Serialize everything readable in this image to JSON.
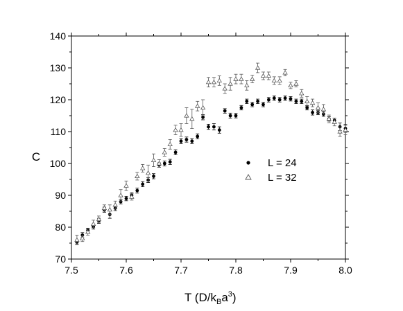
{
  "chart_data": {
    "type": "scatter",
    "xlabel": {
      "main": "T (D/k",
      "sub": "B",
      "mid": "a",
      "sup": "3",
      "end": ")"
    },
    "ylabel": "C",
    "xlim": [
      7.5,
      8.0
    ],
    "ylim": [
      70,
      140
    ],
    "x_ticks": [
      "7.5",
      "7.6",
      "7.7",
      "7.8",
      "7.9",
      "8.0"
    ],
    "x_tick_values": [
      7.5,
      7.6,
      7.7,
      7.8,
      7.9,
      8.0
    ],
    "y_ticks": [
      "70",
      "80",
      "90",
      "100",
      "110",
      "120",
      "130",
      "140"
    ],
    "y_tick_values": [
      70,
      80,
      90,
      100,
      110,
      120,
      130,
      140
    ],
    "legend": {
      "placement": "center-right",
      "items": [
        "L = 24",
        "L = 32"
      ]
    },
    "series": [
      {
        "name": "L = 24",
        "marker": "filled-circle",
        "color": "#000000",
        "x": [
          7.51,
          7.52,
          7.53,
          7.54,
          7.55,
          7.56,
          7.57,
          7.58,
          7.59,
          7.6,
          7.61,
          7.62,
          7.63,
          7.64,
          7.65,
          7.66,
          7.67,
          7.68,
          7.69,
          7.7,
          7.71,
          7.72,
          7.73,
          7.74,
          7.75,
          7.76,
          7.77,
          7.78,
          7.79,
          7.8,
          7.81,
          7.82,
          7.83,
          7.84,
          7.85,
          7.86,
          7.87,
          7.88,
          7.89,
          7.9,
          7.91,
          7.92,
          7.93,
          7.94,
          7.95,
          7.96,
          7.97,
          7.98,
          7.99,
          8.0
        ],
        "y": [
          75.3,
          77.5,
          79.0,
          80.2,
          82.0,
          85.5,
          84.0,
          86.0,
          88.0,
          89.0,
          90.0,
          91.5,
          93.5,
          94.8,
          96.0,
          99.5,
          100.0,
          100.5,
          103.5,
          107.0,
          107.5,
          107.0,
          108.5,
          114.5,
          111.5,
          111.5,
          110.5,
          116.5,
          115.0,
          115.0,
          117.5,
          119.5,
          118.5,
          119.5,
          118.5,
          120.0,
          120.5,
          120.0,
          120.5,
          120.3,
          119.5,
          119.5,
          117.5,
          116.0,
          116.0,
          115.5,
          114.0,
          113.5,
          111.5,
          111.0
        ],
        "err": [
          0.7,
          0.8,
          0.7,
          0.8,
          0.8,
          0.8,
          1.2,
          0.8,
          0.7,
          0.7,
          0.8,
          0.8,
          0.8,
          0.8,
          0.8,
          0.7,
          0.8,
          0.8,
          0.8,
          0.8,
          0.8,
          0.8,
          0.8,
          0.8,
          0.8,
          1.0,
          1.0,
          0.7,
          0.8,
          0.7,
          0.7,
          0.7,
          0.7,
          0.7,
          0.7,
          0.7,
          0.7,
          0.7,
          0.7,
          0.7,
          0.7,
          0.7,
          0.7,
          0.8,
          0.7,
          0.7,
          0.7,
          0.7,
          1.2,
          1.2
        ]
      },
      {
        "name": "L = 32",
        "marker": "open-triangle",
        "color": "#555555",
        "x": [
          7.51,
          7.52,
          7.53,
          7.54,
          7.55,
          7.56,
          7.57,
          7.58,
          7.59,
          7.6,
          7.61,
          7.62,
          7.63,
          7.64,
          7.65,
          7.66,
          7.67,
          7.68,
          7.69,
          7.7,
          7.71,
          7.72,
          7.73,
          7.74,
          7.75,
          7.76,
          7.77,
          7.78,
          7.79,
          7.8,
          7.81,
          7.82,
          7.83,
          7.84,
          7.85,
          7.86,
          7.87,
          7.88,
          7.89,
          7.9,
          7.91,
          7.92,
          7.93,
          7.94,
          7.95,
          7.96,
          7.97,
          7.98,
          7.99,
          8.0
        ],
        "y": [
          76.0,
          76.5,
          78.5,
          81.0,
          82.5,
          86.0,
          85.5,
          87.0,
          90.0,
          93.0,
          89.5,
          96.0,
          98.5,
          97.0,
          101.0,
          100.0,
          103.5,
          106.0,
          110.5,
          110.5,
          115.0,
          114.0,
          118.0,
          117.5,
          125.5,
          125.5,
          126.0,
          123.5,
          125.0,
          126.5,
          126.5,
          124.5,
          126.5,
          130.0,
          127.5,
          127.5,
          126.0,
          126.0,
          128.5,
          124.5,
          125.0,
          122.0,
          119.5,
          119.0,
          117.5,
          117.0,
          114.0,
          113.0,
          110.0,
          110.5
        ],
        "err": [
          1.5,
          1.0,
          1.0,
          1.2,
          1.0,
          1.0,
          1.5,
          1.2,
          1.8,
          1.5,
          1.0,
          1.2,
          1.2,
          2.5,
          2.0,
          1.2,
          1.2,
          1.5,
          1.5,
          2.0,
          2.5,
          3.0,
          1.5,
          2.5,
          1.5,
          1.5,
          1.5,
          1.5,
          2.0,
          1.5,
          1.5,
          1.5,
          1.2,
          1.5,
          1.2,
          1.2,
          1.2,
          1.2,
          1.0,
          1.0,
          1.0,
          1.2,
          1.5,
          1.2,
          1.5,
          1.5,
          1.2,
          1.2,
          1.5,
          1.5
        ]
      }
    ]
  }
}
